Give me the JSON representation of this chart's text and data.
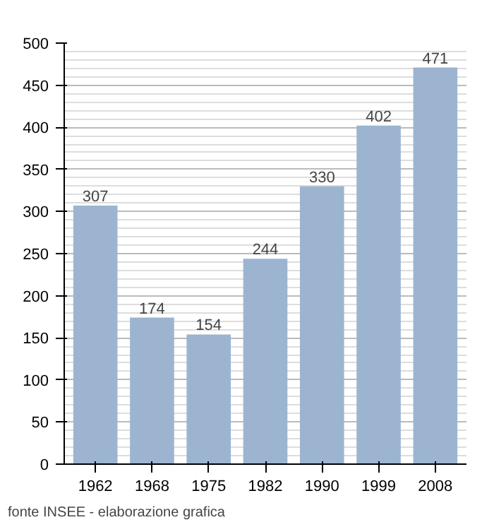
{
  "chart_data": {
    "type": "bar",
    "categories": [
      "1962",
      "1968",
      "1975",
      "1982",
      "1990",
      "1999",
      "2008"
    ],
    "values": [
      307,
      174,
      154,
      244,
      330,
      402,
      471
    ],
    "color": "#9cb4cf",
    "ylim": [
      0,
      500
    ],
    "yticks": [
      0,
      50,
      100,
      150,
      200,
      250,
      300,
      350,
      400,
      450,
      500
    ],
    "grid": "y",
    "data_labels": true,
    "annotations": [
      "fonte INSEE - elaborazione grafica"
    ]
  }
}
